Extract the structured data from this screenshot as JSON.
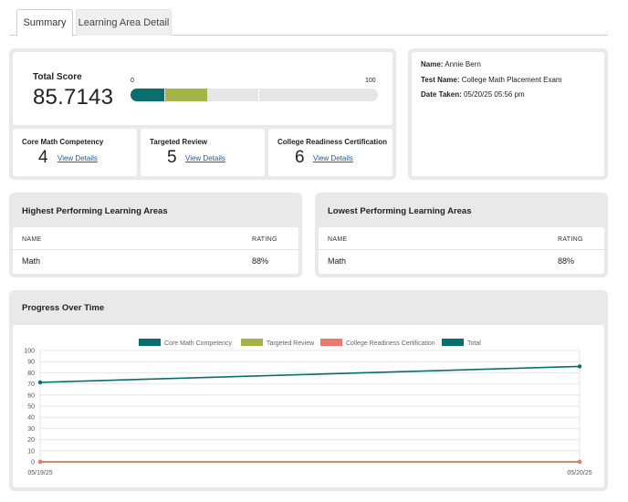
{
  "tabs": {
    "summary": "Summary",
    "learning_area_detail": "Learning Area Detail"
  },
  "total_score": {
    "label": "Total Score",
    "value": "85.7143",
    "bar_min": "0",
    "bar_max": "100",
    "segments": [
      {
        "name": "Core Math Competency",
        "value": 13.5,
        "color": "#0b6e6e"
      },
      {
        "name": "Targeted Review",
        "value": 17,
        "color": "#a4b548"
      }
    ]
  },
  "metrics": [
    {
      "title": "Core Math Competency",
      "count": "4",
      "link": "View Details"
    },
    {
      "title": "Targeted Review",
      "count": "5",
      "link": "View Details"
    },
    {
      "title": "College Readiness Certification",
      "count": "6",
      "link": "View Details"
    }
  ],
  "info": {
    "name_label": "Name:",
    "name": "Annie Bern",
    "test_label": "Test Name:",
    "test": "College Math Placement Exam",
    "date_label": "Date Taken:",
    "date": "05/20/25 05:56 pm"
  },
  "highest": {
    "title": "Highest Performing Learning Areas",
    "col_name": "NAME",
    "col_rating": "RATING",
    "rows": [
      {
        "name": "Math",
        "rating": "88%"
      }
    ]
  },
  "lowest": {
    "title": "Lowest Performing Learning Areas",
    "col_name": "NAME",
    "col_rating": "RATING",
    "rows": [
      {
        "name": "Math",
        "rating": "88%"
      }
    ]
  },
  "progress": {
    "title": "Progress Over Time"
  },
  "chart_data": {
    "type": "line",
    "title": "Progress Over Time",
    "x": [
      "05/19/25",
      "05/20/25"
    ],
    "ylim": [
      0,
      100
    ],
    "yticks": [
      0,
      10,
      20,
      30,
      40,
      50,
      60,
      70,
      80,
      90,
      100
    ],
    "grid": true,
    "legend_position": "top",
    "series": [
      {
        "name": "Core Math Competency",
        "color": "#0b6e6e",
        "values": [
          0,
          0
        ]
      },
      {
        "name": "Targeted Review",
        "color": "#a4b548",
        "values": [
          0,
          0
        ]
      },
      {
        "name": "College Readiness Certification",
        "color": "#ea7a6e",
        "values": [
          0,
          0
        ]
      },
      {
        "name": "Total",
        "color": "#0b6e6e",
        "values": [
          71.4,
          85.7
        ]
      }
    ]
  }
}
